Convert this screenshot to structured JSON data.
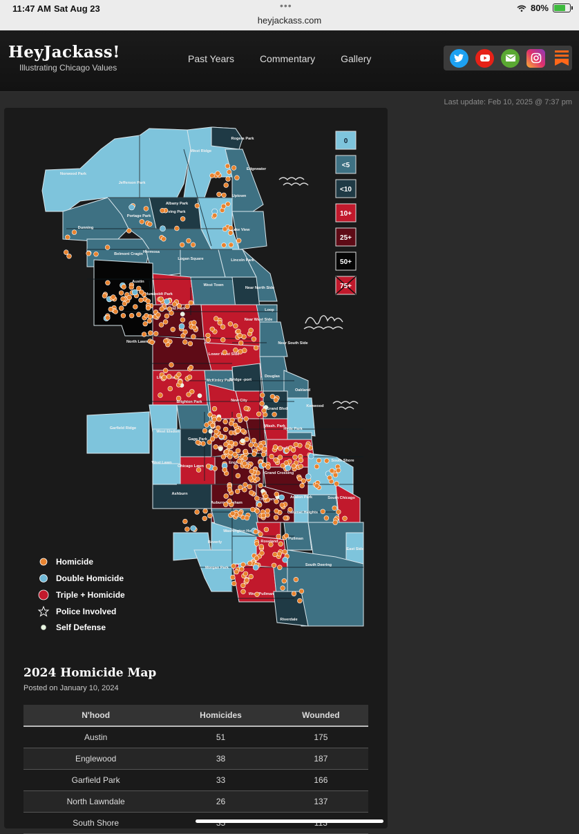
{
  "status_bar": {
    "time": "11:47 AM",
    "date": "Sat Aug 23",
    "url": "heyjackass.com",
    "battery": "80%",
    "battery_level": 0.8
  },
  "header": {
    "logo": "HeyJackass!",
    "tagline": "Illustrating Chicago Values",
    "nav": [
      "Past Years",
      "Commentary",
      "Gallery"
    ],
    "social_icons": [
      "twitter-icon",
      "youtube-icon",
      "email-icon",
      "instagram-icon",
      "substack-icon"
    ]
  },
  "last_update": "Last update: Feb 10, 2025 @ 7:37 pm",
  "map": {
    "scale": [
      "0",
      "<5",
      "<10",
      "10+",
      "25+",
      "50+",
      "75+"
    ],
    "legend": [
      "Homicide",
      "Double Homicide",
      "Triple + Homicide",
      "Police Involved",
      "Self Defense"
    ],
    "colors": {
      "light": "#7ec4dc",
      "mid": "#3e7183",
      "dark": "#1f3a45",
      "red": "#c1192c",
      "darkred": "#5e0b16",
      "black": "#050505",
      "homicide": "#e8832f",
      "double": "#6fb8d6",
      "self_defense": "#e8f5e0"
    },
    "neighborhoods": [
      "Rogers Park",
      "West Ridge",
      "Edgewater",
      "Norwood Park",
      "Jefferson Park",
      "Uptown",
      "Albany Park",
      "Portage Park",
      "Irving Park",
      "Dunning",
      "Lake View",
      "Belmont Cragin",
      "Hermosa",
      "Logan Square",
      "Lincoln Park",
      "Austin",
      "Humboldt Park",
      "West Town",
      "Near North Side",
      "Garfield Park",
      "Loop",
      "Near West Side",
      "North Lawndale",
      "Near South Side",
      "Lower West Side",
      "Douglas",
      "Little Village",
      "McKinley Park",
      "Bridge -port",
      "Oakland",
      "New City",
      "Kenwood",
      "Brighton Park",
      "Grand Blvd",
      "Garfield Ridge",
      "Gage Park",
      "West Elsdon",
      "Wash. Park",
      "Hyde Park",
      "Woodlawn",
      "West Lawn",
      "Chicago Lawn",
      "Englewood",
      "Grand Crossing",
      "South Shore",
      "Ashburn",
      "Auburn Gresham",
      "Chatham",
      "Avalon Park",
      "South Chicago",
      "Calumet Heights",
      "Washington Heights",
      "Beverly",
      "Roseland",
      "Pullman",
      "East Side",
      "Morgan Park",
      "South Deering",
      "West Pullman",
      "Riverdale"
    ]
  },
  "post": {
    "title": "2024 Homicide Map",
    "posted": "Posted on January 10, 2024",
    "table": {
      "headers": [
        "N'hood",
        "Homicides",
        "Wounded"
      ],
      "rows": [
        [
          "Austin",
          "51",
          "175"
        ],
        [
          "Englewood",
          "38",
          "187"
        ],
        [
          "Garfield Park",
          "33",
          "166"
        ],
        [
          "North Lawndale",
          "26",
          "137"
        ],
        [
          "South Shore",
          "35",
          "113"
        ]
      ]
    }
  }
}
